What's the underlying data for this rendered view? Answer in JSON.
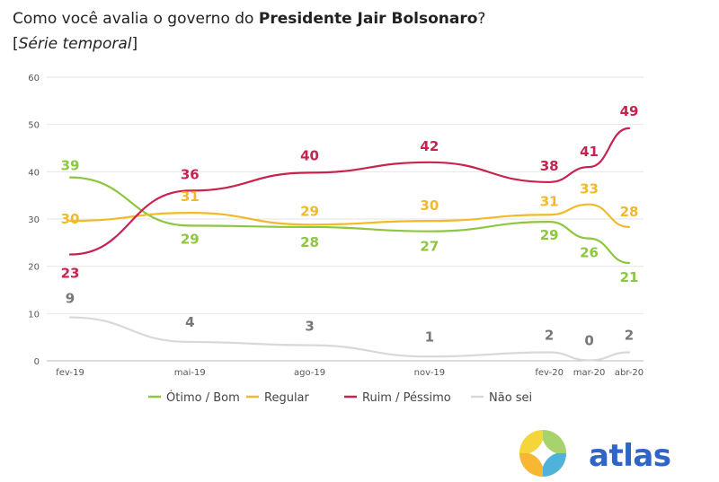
{
  "header": {
    "title_prefix": "Como você avalia o governo do ",
    "title_bold": "Presidente Jair Bolsonaro",
    "title_suffix": "?",
    "subtitle_open": "[",
    "subtitle_italic": "Série temporal",
    "subtitle_close": "]"
  },
  "brand": {
    "name": "atlas"
  },
  "chart_data": {
    "type": "line",
    "title": "Como você avalia o governo do Presidente Jair Bolsonaro?",
    "subtitle": "[Série temporal]",
    "xlabel": "",
    "ylabel": "",
    "x": [
      "fev-19",
      "mai-19",
      "ago-19",
      "nov-19",
      "fev-20",
      "mar-20",
      "abr-20"
    ],
    "x_pos": [
      0,
      3,
      6,
      9,
      12,
      13,
      14
    ],
    "ylim": [
      0,
      60
    ],
    "yticks": [
      "0",
      "10",
      "20",
      "30",
      "40",
      "50",
      "60"
    ],
    "grid": "horizontal",
    "legend_position": "bottom",
    "series": [
      {
        "name": "Ótimo / Bom",
        "color": "#8dc63f",
        "values": [
          38.8,
          28.6,
          28.3,
          27.4,
          29.4,
          25.9,
          20.7
        ],
        "labels": [
          "39",
          "29",
          "28",
          "27",
          "29",
          "26",
          "21"
        ]
      },
      {
        "name": "Regular",
        "color": "#f2b928",
        "values": [
          29.6,
          31.3,
          28.8,
          29.6,
          30.9,
          33.1,
          28.3
        ],
        "labels": [
          "30",
          "31",
          "29",
          "30",
          "31",
          "33",
          "28"
        ]
      },
      {
        "name": "Ruim / Péssimo",
        "color": "#c8234e",
        "values": [
          22.5,
          36.0,
          39.8,
          42.0,
          37.8,
          41.0,
          49.2
        ],
        "labels": [
          "23",
          "36",
          "40",
          "42",
          "38",
          "41",
          "49"
        ]
      },
      {
        "name": "Não sei",
        "color": "#d8d8d8",
        "values": [
          9.2,
          4.0,
          3.3,
          0.9,
          1.8,
          0.1,
          1.8
        ],
        "labels": [
          "9",
          "4",
          "3",
          "1",
          "2",
          "0",
          "2"
        ]
      }
    ]
  },
  "colors": {
    "brand_blue": "#2f64c8",
    "axis_text": "#555555",
    "nao_sei_label": "#777777"
  }
}
